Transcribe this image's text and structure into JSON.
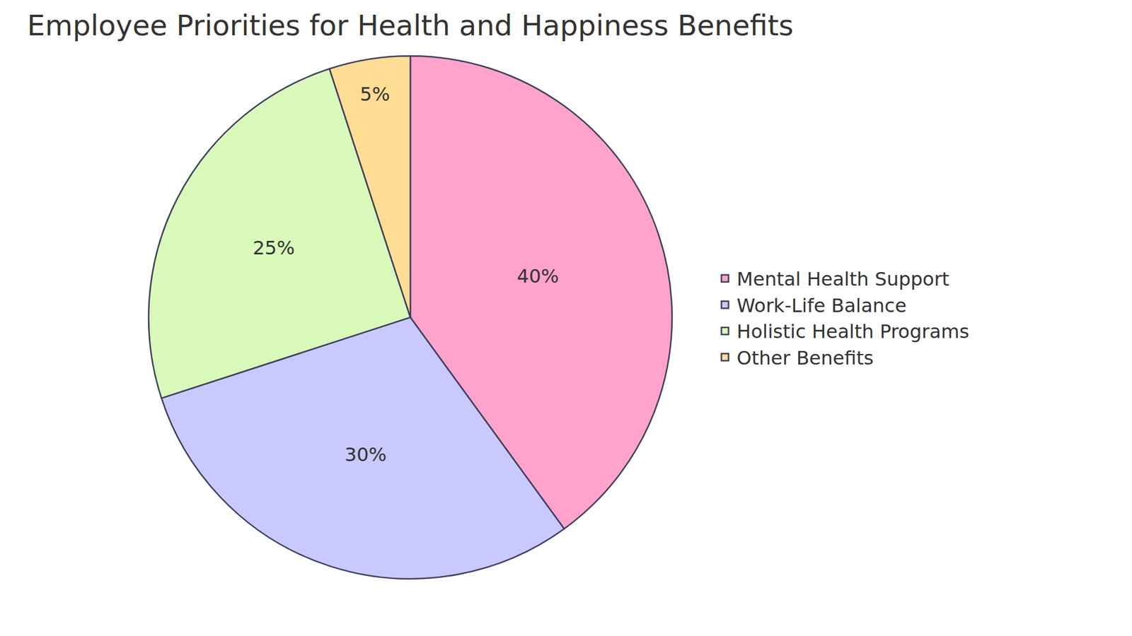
{
  "chart_data": {
    "type": "pie",
    "title": "Employee Priorities for Health and Happiness Benefits",
    "categories": [
      "Mental Health Support",
      "Work-Life Balance",
      "Holistic Health Programs",
      "Other Benefits"
    ],
    "values": [
      40,
      30,
      25,
      5
    ],
    "value_labels": [
      "40%",
      "30%",
      "25%",
      "5%"
    ],
    "colors": [
      "#ffa3cc",
      "#c9c9ff",
      "#d9f9bb",
      "#ffdd94"
    ],
    "data_labels": true,
    "legend": "right"
  }
}
